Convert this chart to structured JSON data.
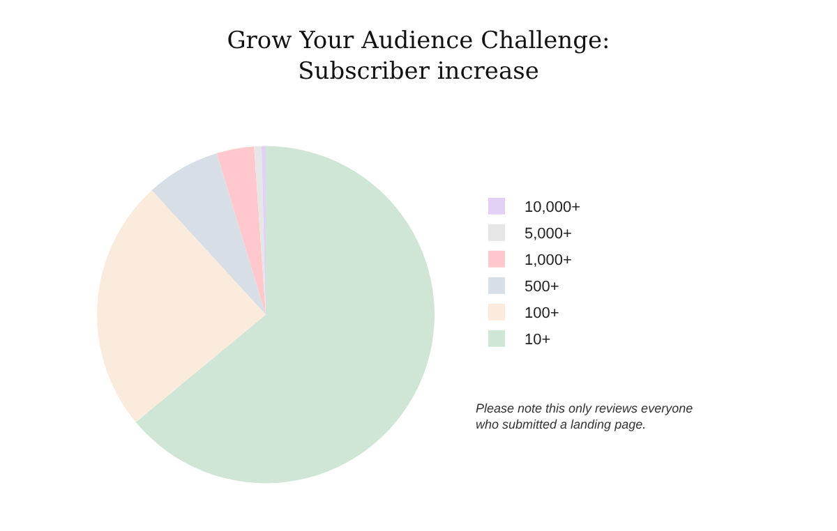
{
  "chart_data": {
    "type": "pie",
    "title": "Grow Your Audience Challenge:\nSubscriber increase",
    "categories": [
      "10+",
      "100+",
      "500+",
      "1,000+",
      "5,000+",
      "10,000+"
    ],
    "values": [
      64.0,
      24.2,
      7.1,
      3.6,
      0.7,
      0.4
    ],
    "colors": [
      "#cfe6d7",
      "#fbebdc",
      "#d8dee6",
      "#ffc8cc",
      "#e6e6e6",
      "#e3d0f5"
    ],
    "legend": "right",
    "annotations": [
      "Please note this only reviews everyone\nwho submitted a landing page."
    ]
  }
}
